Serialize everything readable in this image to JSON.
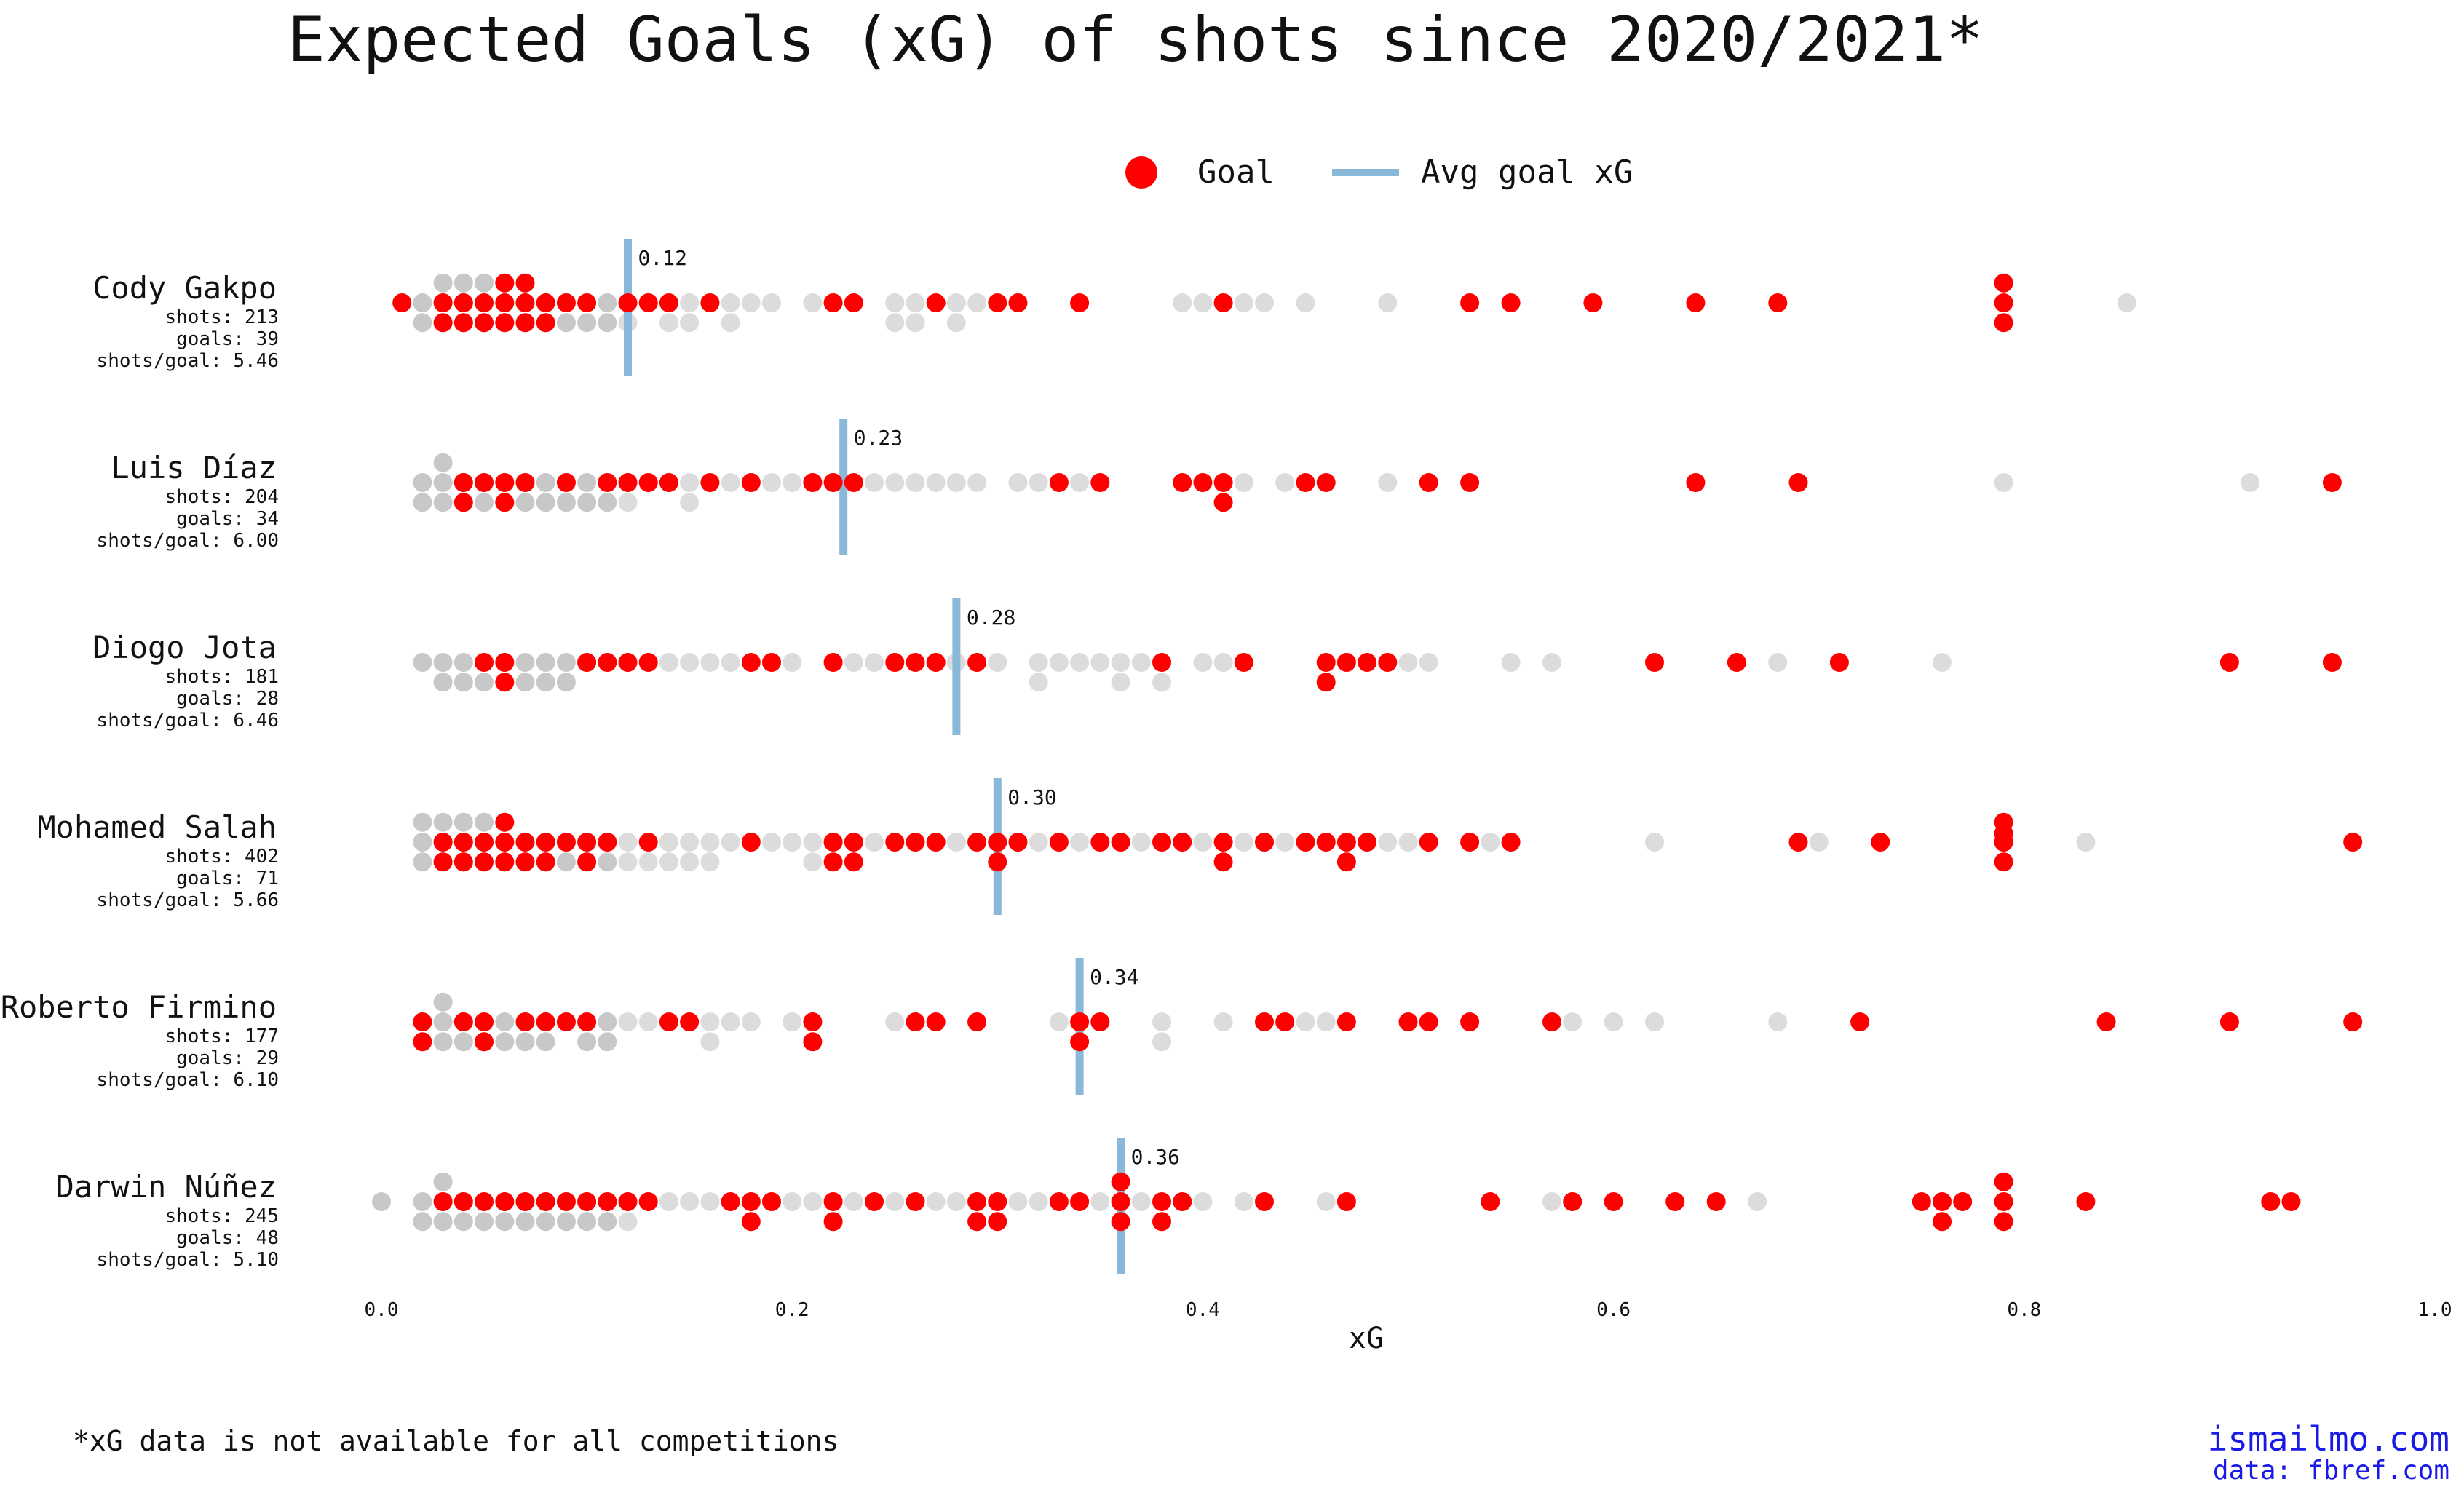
{
  "chart_data": {
    "type": "scatter",
    "title": "Expected Goals (xG) of shots since 2020/2021*",
    "xlabel": "xG",
    "xlim": [
      0.0,
      1.0
    ],
    "xticks": [
      "0.0",
      "0.2",
      "0.4",
      "0.6",
      "0.8",
      "1.0"
    ],
    "legend": {
      "placement": "top-center",
      "goal_label": "Goal",
      "avg_label": "Avg goal xG"
    },
    "colors": {
      "goal": "#ff0000",
      "shot": "#9a9a9a",
      "avg_line": "#8ab8d8",
      "credit": "#1a1ae6"
    },
    "players": [
      {
        "name": "Cody Gakpo",
        "shots_text": "shots: 213",
        "goals_text": "goals: 39",
        "ratio_text": "shots/goal: 5.46",
        "avg_goal_xg": 0.12,
        "avg_label": "0.12",
        "goals_xg": [
          0.01,
          0.03,
          0.03,
          0.04,
          0.04,
          0.05,
          0.05,
          0.06,
          0.06,
          0.06,
          0.07,
          0.07,
          0.07,
          0.08,
          0.08,
          0.09,
          0.1,
          0.12,
          0.13,
          0.14,
          0.16,
          0.22,
          0.23,
          0.27,
          0.3,
          0.31,
          0.34,
          0.41,
          0.53,
          0.55,
          0.59,
          0.64,
          0.68,
          0.79,
          0.79,
          0.79
        ],
        "shots_xg": [
          0.02,
          0.02,
          0.03,
          0.03,
          0.03,
          0.04,
          0.04,
          0.04,
          0.05,
          0.05,
          0.05,
          0.06,
          0.06,
          0.07,
          0.07,
          0.08,
          0.08,
          0.09,
          0.09,
          0.1,
          0.1,
          0.11,
          0.11,
          0.12,
          0.12,
          0.13,
          0.14,
          0.14,
          0.15,
          0.15,
          0.16,
          0.17,
          0.17,
          0.18,
          0.19,
          0.21,
          0.22,
          0.23,
          0.25,
          0.25,
          0.26,
          0.26,
          0.28,
          0.28,
          0.29,
          0.39,
          0.4,
          0.41,
          0.42,
          0.43,
          0.45,
          0.49,
          0.85
        ]
      },
      {
        "name": "Luis Díaz",
        "shots_text": "shots: 204",
        "goals_text": "goals: 34",
        "ratio_text": "shots/goal: 6.00",
        "avg_goal_xg": 0.225,
        "avg_label": "0.23",
        "goals_xg": [
          0.04,
          0.04,
          0.05,
          0.06,
          0.06,
          0.07,
          0.09,
          0.11,
          0.12,
          0.13,
          0.14,
          0.16,
          0.18,
          0.21,
          0.22,
          0.23,
          0.33,
          0.35,
          0.39,
          0.4,
          0.41,
          0.41,
          0.45,
          0.46,
          0.51,
          0.53,
          0.64,
          0.69,
          0.95
        ],
        "shots_xg": [
          0.02,
          0.02,
          0.03,
          0.03,
          0.03,
          0.04,
          0.04,
          0.05,
          0.05,
          0.06,
          0.06,
          0.07,
          0.07,
          0.08,
          0.08,
          0.09,
          0.09,
          0.1,
          0.1,
          0.11,
          0.11,
          0.12,
          0.12,
          0.13,
          0.14,
          0.15,
          0.15,
          0.16,
          0.17,
          0.18,
          0.19,
          0.2,
          0.21,
          0.22,
          0.24,
          0.25,
          0.26,
          0.27,
          0.28,
          0.29,
          0.31,
          0.32,
          0.34,
          0.35,
          0.42,
          0.44,
          0.49,
          0.79,
          0.91
        ]
      },
      {
        "name": "Diogo Jota",
        "shots_text": "shots: 181",
        "goals_text": "goals: 28",
        "ratio_text": "shots/goal: 6.46",
        "avg_goal_xg": 0.28,
        "avg_label": "0.28",
        "goals_xg": [
          0.05,
          0.06,
          0.06,
          0.1,
          0.11,
          0.12,
          0.13,
          0.18,
          0.19,
          0.22,
          0.25,
          0.26,
          0.27,
          0.29,
          0.38,
          0.42,
          0.46,
          0.46,
          0.47,
          0.48,
          0.49,
          0.62,
          0.66,
          0.71,
          0.9,
          0.95
        ],
        "shots_xg": [
          0.02,
          0.03,
          0.03,
          0.04,
          0.04,
          0.05,
          0.05,
          0.06,
          0.07,
          0.07,
          0.08,
          0.08,
          0.09,
          0.09,
          0.1,
          0.11,
          0.12,
          0.13,
          0.14,
          0.15,
          0.16,
          0.17,
          0.19,
          0.2,
          0.22,
          0.23,
          0.24,
          0.25,
          0.27,
          0.28,
          0.29,
          0.3,
          0.32,
          0.32,
          0.33,
          0.34,
          0.35,
          0.36,
          0.36,
          0.37,
          0.38,
          0.38,
          0.4,
          0.41,
          0.42,
          0.5,
          0.51,
          0.55,
          0.57,
          0.68,
          0.76
        ]
      },
      {
        "name": "Mohamed Salah",
        "shots_text": "shots: 402",
        "goals_text": "goals: 71",
        "ratio_text": "shots/goal: 5.66",
        "avg_goal_xg": 0.3,
        "avg_label": "0.30",
        "goals_xg": [
          0.03,
          0.03,
          0.04,
          0.04,
          0.05,
          0.05,
          0.06,
          0.06,
          0.06,
          0.07,
          0.07,
          0.08,
          0.08,
          0.09,
          0.1,
          0.1,
          0.11,
          0.13,
          0.18,
          0.22,
          0.22,
          0.23,
          0.23,
          0.25,
          0.26,
          0.27,
          0.29,
          0.3,
          0.3,
          0.31,
          0.33,
          0.35,
          0.36,
          0.38,
          0.39,
          0.41,
          0.41,
          0.43,
          0.45,
          0.46,
          0.47,
          0.47,
          0.48,
          0.51,
          0.53,
          0.55,
          0.69,
          0.73,
          0.79,
          0.79,
          0.79,
          0.79,
          0.79,
          0.96
        ],
        "shots_xg": [
          0.02,
          0.02,
          0.02,
          0.03,
          0.03,
          0.03,
          0.04,
          0.04,
          0.04,
          0.05,
          0.05,
          0.05,
          0.06,
          0.06,
          0.07,
          0.07,
          0.08,
          0.08,
          0.09,
          0.09,
          0.1,
          0.1,
          0.11,
          0.11,
          0.12,
          0.12,
          0.13,
          0.13,
          0.14,
          0.14,
          0.15,
          0.15,
          0.16,
          0.16,
          0.17,
          0.18,
          0.19,
          0.2,
          0.21,
          0.21,
          0.22,
          0.23,
          0.24,
          0.25,
          0.26,
          0.27,
          0.28,
          0.29,
          0.3,
          0.31,
          0.32,
          0.33,
          0.34,
          0.35,
          0.36,
          0.37,
          0.38,
          0.39,
          0.4,
          0.41,
          0.42,
          0.43,
          0.44,
          0.46,
          0.48,
          0.49,
          0.5,
          0.51,
          0.54,
          0.55,
          0.62,
          0.7,
          0.83
        ]
      },
      {
        "name": "Roberto Firmino",
        "shots_text": "shots: 177",
        "goals_text": "goals: 29",
        "ratio_text": "shots/goal: 6.10",
        "avg_goal_xg": 0.34,
        "avg_label": "0.34",
        "goals_xg": [
          0.02,
          0.02,
          0.04,
          0.05,
          0.05,
          0.07,
          0.08,
          0.09,
          0.1,
          0.14,
          0.15,
          0.21,
          0.21,
          0.26,
          0.27,
          0.29,
          0.34,
          0.34,
          0.35,
          0.43,
          0.44,
          0.47,
          0.5,
          0.51,
          0.53,
          0.57,
          0.72,
          0.84,
          0.9,
          0.96
        ],
        "shots_xg": [
          0.02,
          0.03,
          0.03,
          0.03,
          0.04,
          0.04,
          0.05,
          0.05,
          0.06,
          0.06,
          0.07,
          0.07,
          0.08,
          0.08,
          0.09,
          0.1,
          0.1,
          0.11,
          0.11,
          0.12,
          0.13,
          0.14,
          0.16,
          0.16,
          0.17,
          0.18,
          0.2,
          0.21,
          0.25,
          0.26,
          0.29,
          0.33,
          0.35,
          0.38,
          0.38,
          0.41,
          0.45,
          0.46,
          0.58,
          0.6,
          0.62,
          0.68
        ]
      },
      {
        "name": "Darwin Núñez",
        "shots_text": "shots: 245",
        "goals_text": "goals: 48",
        "ratio_text": "shots/goal: 5.10",
        "avg_goal_xg": 0.36,
        "avg_label": "0.36",
        "goals_xg": [
          0.03,
          0.04,
          0.05,
          0.06,
          0.07,
          0.08,
          0.09,
          0.1,
          0.11,
          0.12,
          0.13,
          0.17,
          0.18,
          0.18,
          0.19,
          0.22,
          0.22,
          0.24,
          0.26,
          0.29,
          0.29,
          0.3,
          0.3,
          0.33,
          0.34,
          0.36,
          0.36,
          0.36,
          0.38,
          0.38,
          0.39,
          0.43,
          0.47,
          0.54,
          0.58,
          0.6,
          0.63,
          0.65,
          0.75,
          0.76,
          0.76,
          0.77,
          0.79,
          0.79,
          0.79,
          0.83,
          0.92,
          0.93
        ],
        "shots_xg": [
          0.0,
          0.02,
          0.02,
          0.03,
          0.03,
          0.03,
          0.04,
          0.04,
          0.05,
          0.05,
          0.06,
          0.06,
          0.07,
          0.07,
          0.08,
          0.08,
          0.09,
          0.09,
          0.1,
          0.1,
          0.11,
          0.11,
          0.12,
          0.12,
          0.13,
          0.14,
          0.15,
          0.16,
          0.17,
          0.18,
          0.19,
          0.2,
          0.21,
          0.23,
          0.24,
          0.25,
          0.27,
          0.28,
          0.29,
          0.31,
          0.32,
          0.34,
          0.35,
          0.37,
          0.39,
          0.4,
          0.42,
          0.46,
          0.57,
          0.58,
          0.67,
          0.79
        ]
      }
    ]
  },
  "footnote": "*xG data is not available for all competitions",
  "credits": {
    "site": "ismailmo.com",
    "source": "data: fbref.com"
  }
}
